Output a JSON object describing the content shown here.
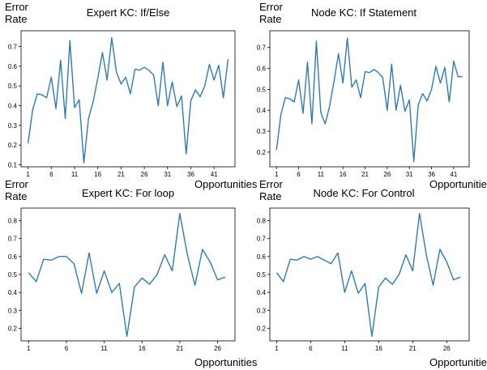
{
  "style": {
    "line_color": "#2f7bb5"
  },
  "chart_data": [
    {
      "type": "line",
      "title": "Expert KC: If/Else",
      "ylabel": [
        "Error",
        "Rate"
      ],
      "xlabel": "Opportunities",
      "xticks": [
        1,
        6,
        11,
        16,
        21,
        26,
        31,
        36,
        41
      ],
      "yticks": [
        "0.1",
        "0.2",
        "0.3",
        "0.4",
        "0.5",
        "0.6",
        "0.7"
      ],
      "ylim": [
        0.09,
        0.78
      ],
      "xlim": [
        -0.5,
        45.5
      ],
      "x": [
        1,
        2,
        3,
        4,
        5,
        6,
        7,
        8,
        9,
        10,
        11,
        12,
        13,
        14,
        15,
        16,
        17,
        18,
        19,
        20,
        21,
        22,
        23,
        24,
        25,
        26,
        27,
        28,
        29,
        30,
        31,
        32,
        33,
        34,
        35,
        36,
        37,
        38,
        39,
        40,
        41,
        42,
        43,
        44
      ],
      "values": [
        0.21,
        0.38,
        0.46,
        0.455,
        0.44,
        0.545,
        0.385,
        0.63,
        0.335,
        0.73,
        0.39,
        0.43,
        0.11,
        0.335,
        0.42,
        0.54,
        0.67,
        0.53,
        0.745,
        0.57,
        0.51,
        0.545,
        0.46,
        0.585,
        0.58,
        0.595,
        0.58,
        0.555,
        0.4,
        0.62,
        0.4,
        0.52,
        0.395,
        0.45,
        0.155,
        0.425,
        0.48,
        0.445,
        0.5,
        0.61,
        0.53,
        0.605,
        0.44,
        0.635
      ]
    },
    {
      "type": "line",
      "title": "Node KC: If Statement",
      "ylabel": [
        "Error",
        "Rate"
      ],
      "xlabel": "Opportunities",
      "xticks": [
        1,
        6,
        11,
        16,
        21,
        26,
        31,
        36,
        41
      ],
      "yticks": [
        "0.2",
        "0.3",
        "0.4",
        "0.5",
        "0.6",
        "0.7"
      ],
      "ylim": [
        0.13,
        0.78
      ],
      "xlim": [
        -0.5,
        44.5
      ],
      "x": [
        1,
        2,
        3,
        4,
        5,
        6,
        7,
        8,
        9,
        10,
        11,
        12,
        13,
        14,
        15,
        16,
        17,
        18,
        19,
        20,
        21,
        22,
        23,
        24,
        25,
        26,
        27,
        28,
        29,
        30,
        31,
        32,
        33,
        34,
        35,
        36,
        37,
        38,
        39,
        40,
        41,
        42,
        43
      ],
      "values": [
        0.21,
        0.38,
        0.46,
        0.455,
        0.44,
        0.545,
        0.385,
        0.63,
        0.335,
        0.73,
        0.39,
        0.335,
        0.42,
        0.54,
        0.67,
        0.53,
        0.745,
        0.51,
        0.545,
        0.46,
        0.585,
        0.58,
        0.595,
        0.58,
        0.555,
        0.4,
        0.62,
        0.4,
        0.52,
        0.395,
        0.45,
        0.155,
        0.425,
        0.48,
        0.445,
        0.5,
        0.61,
        0.53,
        0.605,
        0.44,
        0.635,
        0.56,
        0.56
      ]
    },
    {
      "type": "line",
      "title": "Expert KC: For loop",
      "ylabel": [
        "Error",
        "Rate"
      ],
      "xlabel": "Opportunities",
      "xticks": [
        1,
        6,
        11,
        16,
        21,
        26
      ],
      "yticks": [
        "0.2",
        "0.3",
        "0.4",
        "0.5",
        "0.6",
        "0.7",
        "0.8"
      ],
      "ylim": [
        0.13,
        0.87
      ],
      "xlim": [
        0,
        28.3
      ],
      "x": [
        1,
        2,
        3,
        4,
        5,
        6,
        7,
        8,
        9,
        10,
        11,
        12,
        13,
        14,
        15,
        16,
        17,
        18,
        19,
        20,
        21,
        22,
        23,
        24,
        25,
        26,
        27
      ],
      "values": [
        0.51,
        0.46,
        0.585,
        0.58,
        0.6,
        0.6,
        0.56,
        0.395,
        0.62,
        0.395,
        0.52,
        0.4,
        0.45,
        0.155,
        0.43,
        0.48,
        0.445,
        0.5,
        0.61,
        0.52,
        0.84,
        0.61,
        0.44,
        0.64,
        0.57,
        0.47,
        0.485
      ]
    },
    {
      "type": "line",
      "title": "Node KC: For Control",
      "ylabel": [
        "Error",
        "Rate"
      ],
      "xlabel": "Opportunities",
      "xticks": [
        1,
        6,
        11,
        16,
        21,
        26
      ],
      "yticks": [
        "0.2",
        "0.3",
        "0.4",
        "0.5",
        "0.6",
        "0.7",
        "0.8"
      ],
      "ylim": [
        0.13,
        0.87
      ],
      "xlim": [
        0,
        29.3
      ],
      "x": [
        1,
        2,
        3,
        4,
        5,
        6,
        7,
        8,
        9,
        10,
        11,
        12,
        13,
        14,
        15,
        16,
        17,
        18,
        19,
        20,
        21,
        22,
        23,
        24,
        25,
        26,
        27,
        28
      ],
      "values": [
        0.51,
        0.46,
        0.585,
        0.58,
        0.6,
        0.585,
        0.6,
        0.58,
        0.56,
        0.62,
        0.4,
        0.52,
        0.395,
        0.45,
        0.155,
        0.43,
        0.48,
        0.445,
        0.5,
        0.61,
        0.52,
        0.84,
        0.61,
        0.44,
        0.64,
        0.57,
        0.47,
        0.485
      ]
    }
  ]
}
